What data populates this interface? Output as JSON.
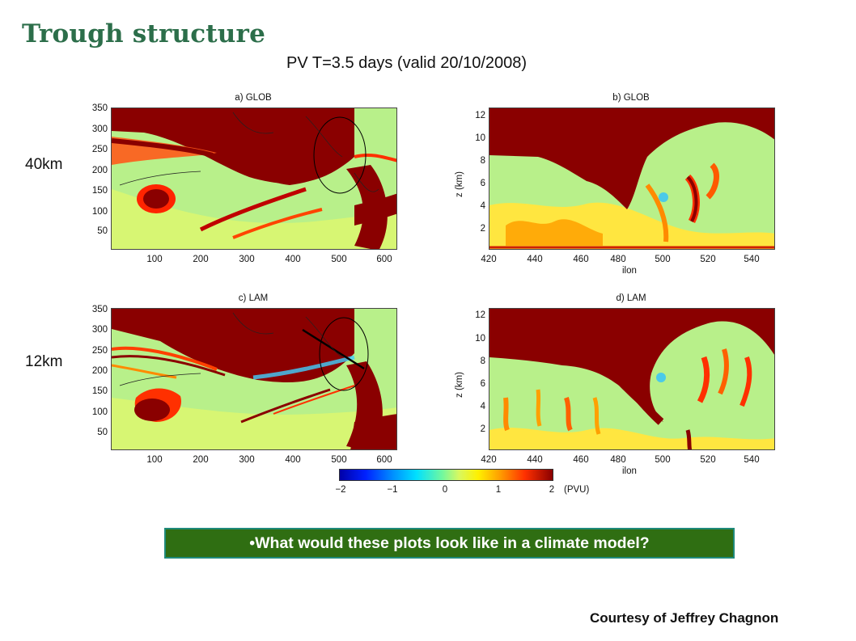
{
  "slide_title": "Trough structure",
  "figure_title": "PV T=3.5 days (valid 20/10/2008)",
  "row_labels": [
    "40km",
    "12km"
  ],
  "panels": {
    "a": {
      "title": "a) GLOB",
      "yticks": [
        "350",
        "300",
        "250",
        "200",
        "150",
        "100",
        "50"
      ],
      "xticks": [
        "100",
        "200",
        "300",
        "400",
        "500",
        "600"
      ]
    },
    "b": {
      "title": "b) GLOB",
      "ylabel": "z (km)",
      "yticks": [
        "12",
        "10",
        "8",
        "6",
        "4",
        "2"
      ],
      "xticks": [
        "420",
        "440",
        "460",
        "480",
        "500",
        "520",
        "540"
      ],
      "xlabel": "ilon"
    },
    "c": {
      "title": "c) LAM",
      "yticks": [
        "350",
        "300",
        "250",
        "200",
        "150",
        "100",
        "50"
      ],
      "xticks": [
        "100",
        "200",
        "300",
        "400",
        "500",
        "600"
      ]
    },
    "d": {
      "title": "d) LAM",
      "ylabel": "z (km)",
      "yticks": [
        "12",
        "10",
        "8",
        "6",
        "4",
        "2"
      ],
      "xticks": [
        "420",
        "440",
        "460",
        "480",
        "500",
        "520",
        "540"
      ],
      "xlabel": "ilon"
    }
  },
  "colorbar": {
    "ticks": [
      "−2",
      "−1",
      "0",
      "1",
      "2"
    ],
    "unit": "(PVU)"
  },
  "question": "•What would these plots look like in a climate model?",
  "courtesy": "Courtesy of Jeffrey Chagnon",
  "colors": {
    "title_green": "#2c6e4a",
    "box_fill": "#2f6e12",
    "box_border": "#1f8a7a",
    "pv_high": "#8a0000",
    "pv_background": "#b8f08a"
  }
}
